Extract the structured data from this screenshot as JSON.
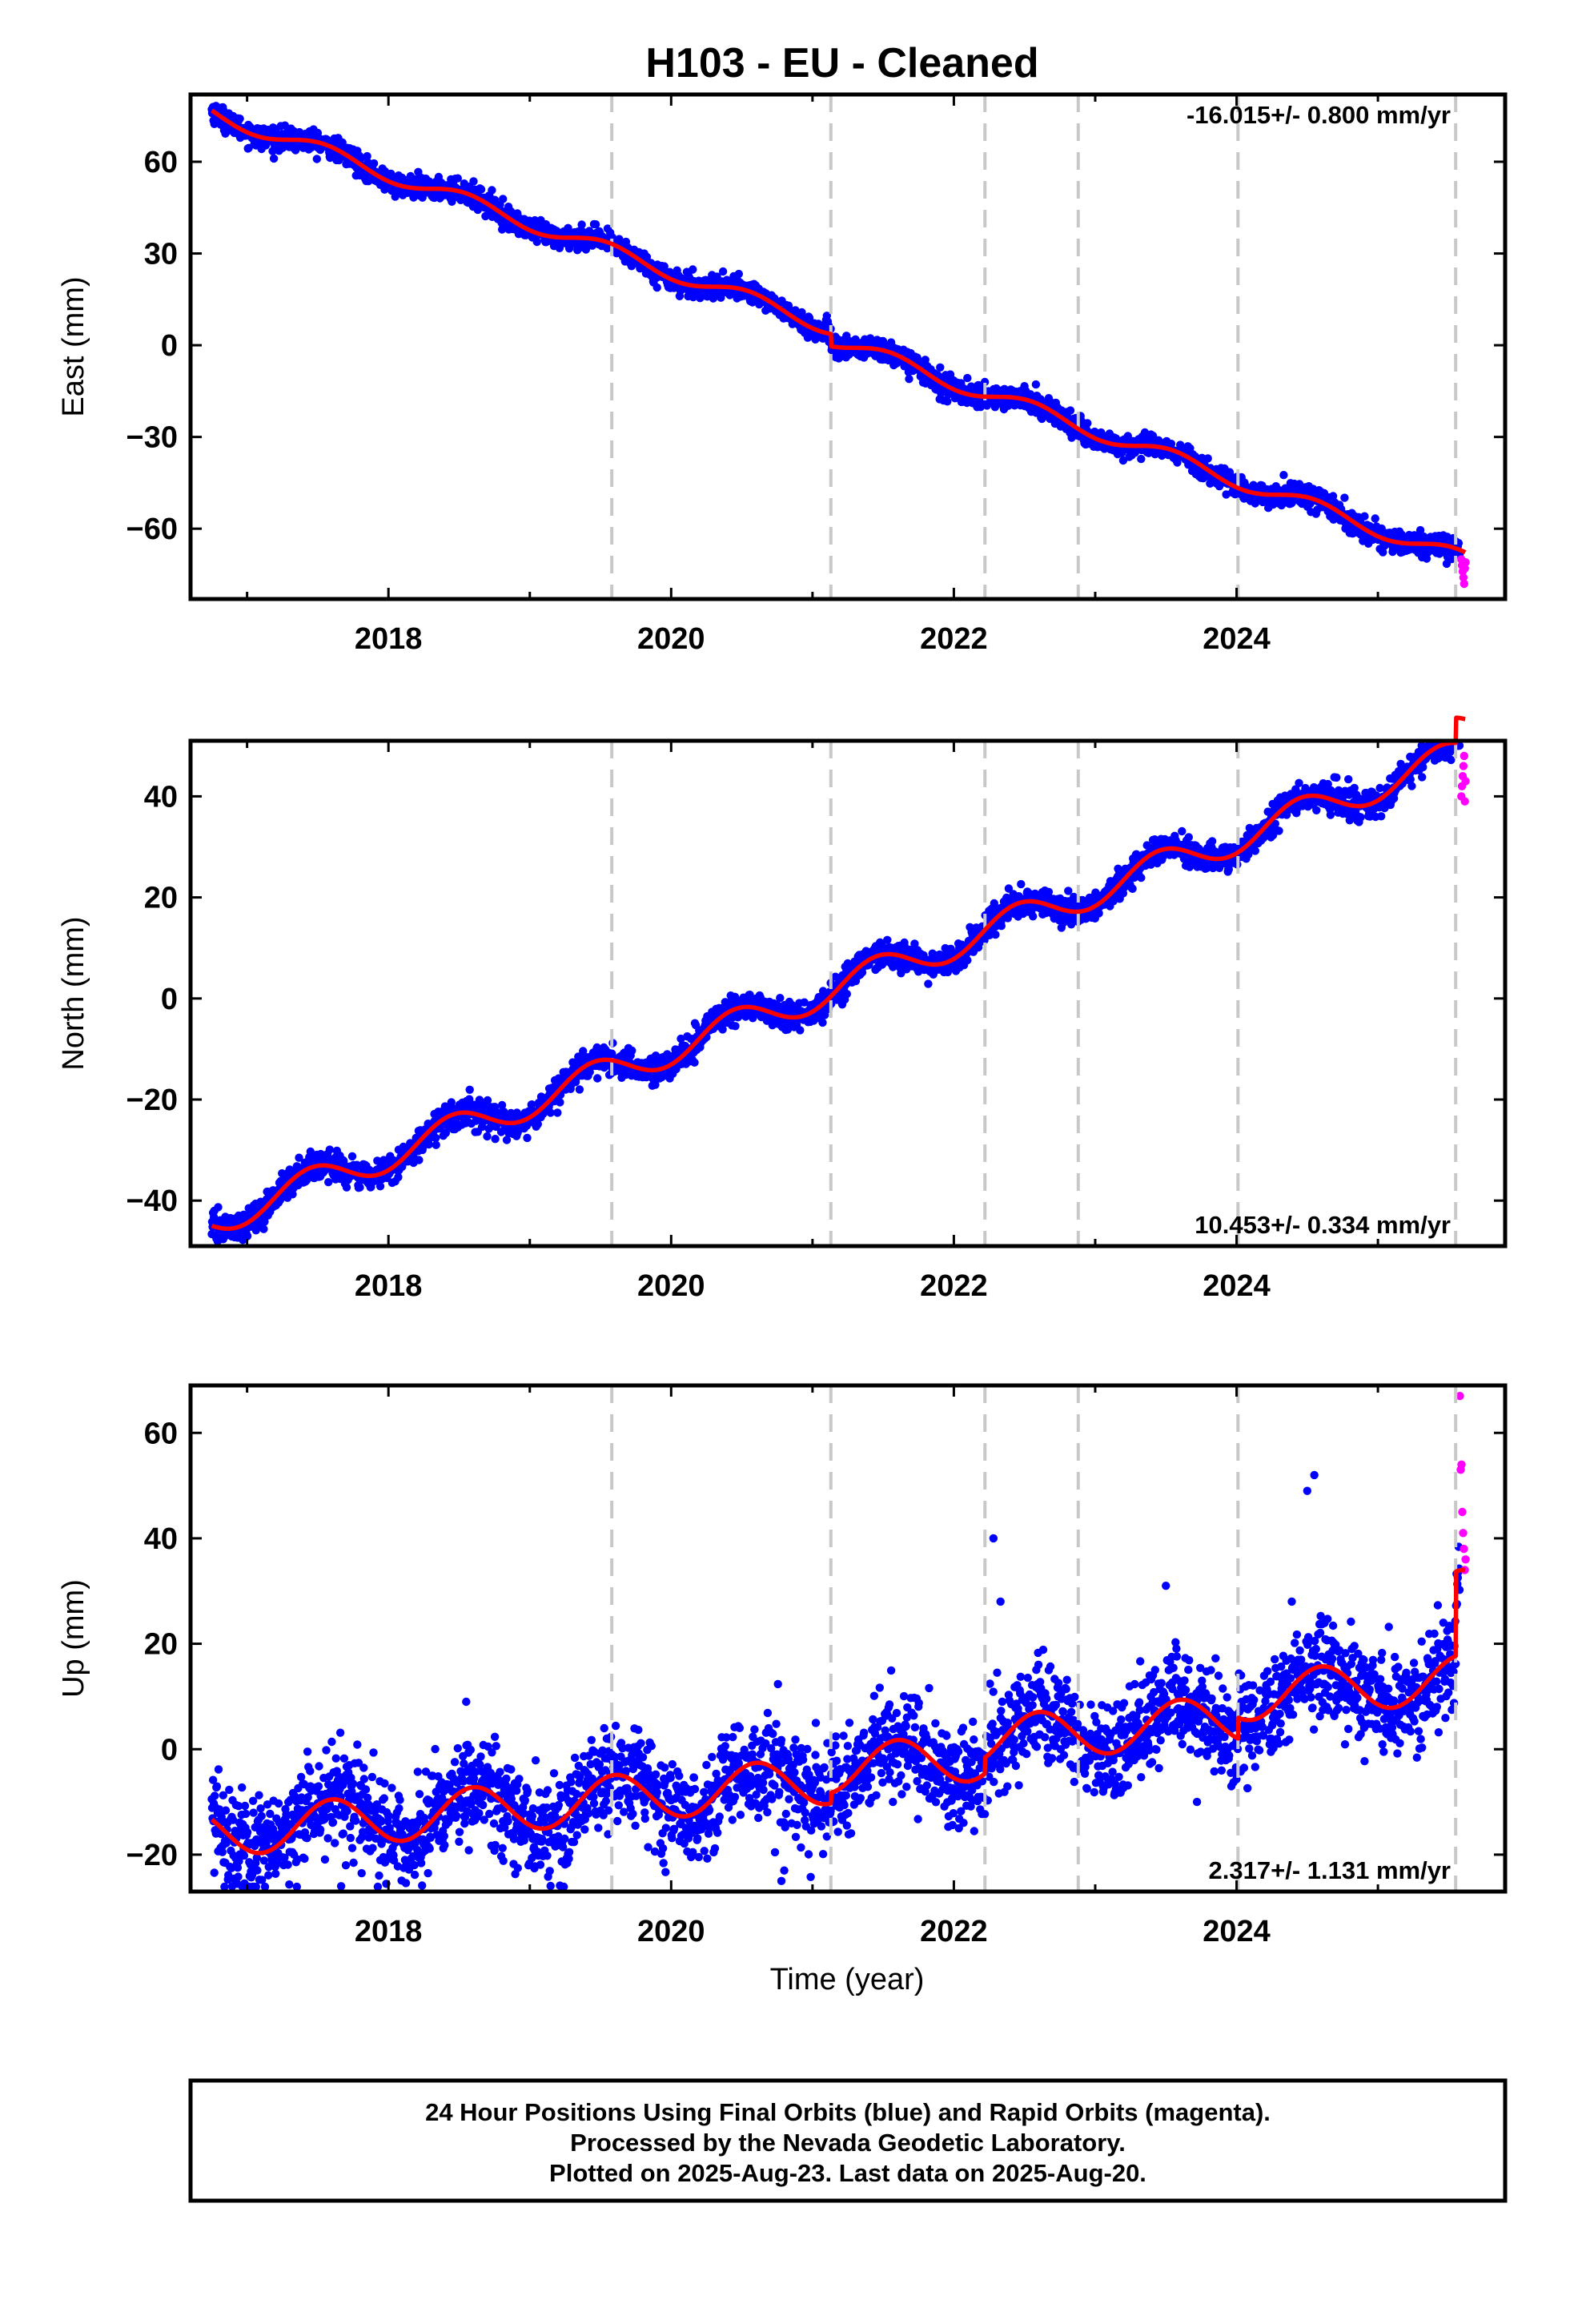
{
  "title": "H103  - EU - Cleaned",
  "xlabel": "Time (year)",
  "footer": {
    "line1": "24 Hour Positions Using Final Orbits (blue) and Rapid Orbits (magenta).",
    "line2": "Processed by the Nevada Geodetic Laboratory.",
    "line3": "Plotted on 2025-Aug-23. Last data on 2025-Aug-20."
  },
  "colors": {
    "final_orbits": "#0000ff",
    "rapid_orbits": "#ff00ff",
    "model_fit": "#ff0000",
    "event_lines": "#c8c8c8"
  },
  "chart_data": [
    {
      "type": "scatter",
      "component": "east",
      "ylabel": "East (mm)",
      "rate_label": "-16.015+/- 0.800 mm/yr",
      "xlim": [
        2016.6,
        2025.9
      ],
      "ylim": [
        -83,
        82
      ],
      "xticks": [
        2018,
        2020,
        2022,
        2024
      ],
      "yticks": [
        -60,
        -30,
        0,
        30,
        60
      ],
      "event_lines_x": [
        2019.58,
        2021.13,
        2022.22,
        2022.88,
        2024.01,
        2025.55
      ],
      "rate_mm_per_yr": -16.015,
      "model": {
        "start": 2016.75,
        "end": 2025.62,
        "value_at_start": 76,
        "seasonal_amp": 2.5,
        "seasonal_phase": 0.3,
        "offsets": [
          {
            "x": 2021.13,
            "dy": -4
          }
        ]
      },
      "scatter_sigma": 1.8,
      "data_start": 2016.75,
      "data_end": 2025.58,
      "rapid": {
        "x_start": 2025.59,
        "x_end": 2025.62,
        "y": [
          -70,
          -72,
          -74,
          -76,
          -78,
          -73,
          -71
        ]
      }
    },
    {
      "type": "scatter",
      "component": "north",
      "ylabel": "North (mm)",
      "rate_label": "10.453+/- 0.334 mm/yr",
      "xlim": [
        2016.6,
        2025.9
      ],
      "ylim": [
        -49,
        51
      ],
      "xticks": [
        2018,
        2020,
        2022,
        2024
      ],
      "yticks": [
        -40,
        -20,
        0,
        20,
        40
      ],
      "event_lines_x": [
        2019.58,
        2021.13,
        2022.22,
        2022.88,
        2024.01,
        2025.55
      ],
      "rate_mm_per_yr": 10.453,
      "model": {
        "start": 2016.75,
        "end": 2025.62,
        "value_at_start": -44,
        "seasonal_amp": 3.2,
        "seasonal_phase": 0.2,
        "offsets": [
          {
            "x": 2025.55,
            "dy": 5
          }
        ]
      },
      "scatter_sigma": 1.4,
      "data_start": 2016.75,
      "data_end": 2025.58,
      "rapid": {
        "x_start": 2025.59,
        "x_end": 2025.62,
        "y": [
          40,
          42,
          44,
          46,
          48,
          39,
          43
        ]
      }
    },
    {
      "type": "scatter",
      "component": "up",
      "ylabel": "Up (mm)",
      "rate_label": "2.317+/- 1.131 mm/yr",
      "xlim": [
        2016.6,
        2025.9
      ],
      "ylim": [
        -27,
        69
      ],
      "xticks": [
        2018,
        2020,
        2022,
        2024
      ],
      "yticks": [
        -20,
        0,
        20,
        40,
        60
      ],
      "event_lines_x": [
        2019.58,
        2021.13,
        2022.22,
        2022.88,
        2024.01,
        2025.55
      ],
      "rate_mm_per_yr": 2.317,
      "model": {
        "start": 2016.75,
        "end": 2025.62,
        "value_at_start": -16,
        "seasonal_amp": 4.5,
        "seasonal_phase": 0.35,
        "offsets": [
          {
            "x": 2021.13,
            "dy": 2
          },
          {
            "x": 2022.22,
            "dy": 3
          },
          {
            "x": 2024.01,
            "dy": 4
          },
          {
            "x": 2025.55,
            "dy": 16
          }
        ]
      },
      "scatter_sigma": 4.8,
      "data_start": 2016.75,
      "data_end": 2025.58,
      "outliers": [
        [
          2020.78,
          -25
        ],
        [
          2020.8,
          -23
        ],
        [
          2022.28,
          40
        ],
        [
          2022.33,
          28
        ],
        [
          2023.5,
          31
        ],
        [
          2024.55,
          52
        ],
        [
          2024.5,
          49
        ],
        [
          2023.72,
          -10
        ],
        [
          2018.55,
          9
        ]
      ],
      "rapid": {
        "x_start": 2025.58,
        "x_end": 2025.62,
        "y": [
          67,
          53,
          54,
          45,
          41,
          38,
          34,
          36
        ]
      }
    }
  ]
}
